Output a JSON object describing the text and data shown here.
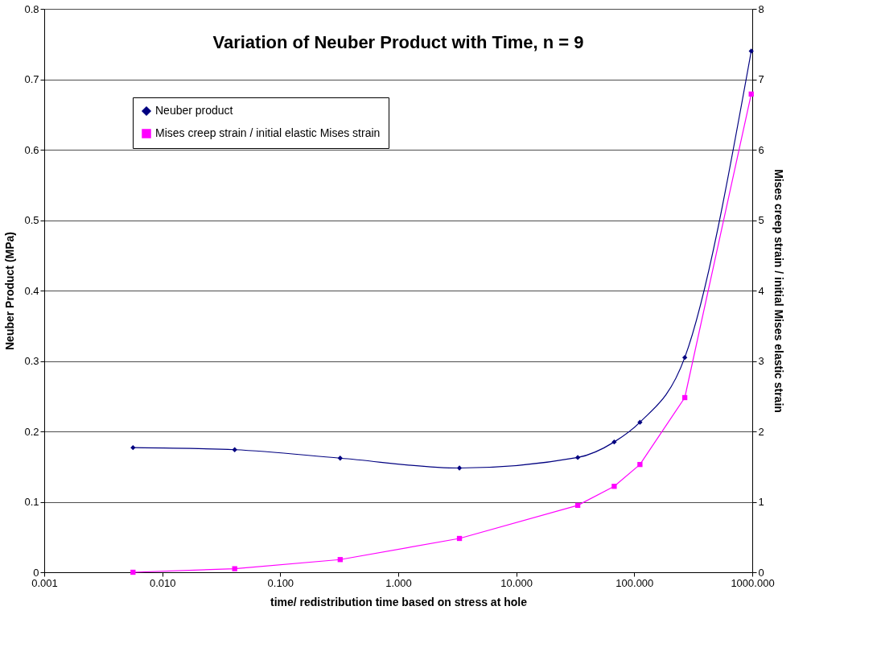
{
  "chart_data": {
    "type": "line",
    "title": "Variation of Neuber Product with Time, n = 9",
    "xlabel": "time/ redistribution time based on stress at hole",
    "ylabel": "Neuber Product (MPa)",
    "y2label": "Mises creep strain / initial Mises  elastic strain",
    "x": [
      0.00565,
      0.0411,
      0.322,
      3.3,
      33.2,
      67.6,
      111.7,
      268,
      980
    ],
    "series": [
      {
        "name": "Neuber product",
        "color": "#000080",
        "marker": "diamond",
        "values": [
          0.177,
          0.174,
          0.162,
          0.148,
          0.163,
          0.185,
          0.213,
          0.305,
          0.74
        ]
      },
      {
        "name": "Mises creep strain / initial elastic Mises strain",
        "color": "#ff00ff",
        "marker": "square",
        "axis": "y2",
        "values": [
          0,
          0.05,
          0.18,
          0.48,
          0.95,
          1.22,
          1.53,
          2.48,
          6.79
        ]
      }
    ],
    "log": "x",
    "xlim": [
      0.001,
      1000
    ],
    "xticks": [
      {
        "value": 0.001,
        "label": "0.001"
      },
      {
        "value": 0.01,
        "label": "0.010"
      },
      {
        "value": 0.1,
        "label": "0.100"
      },
      {
        "value": 1,
        "label": "1.000"
      },
      {
        "value": 10,
        "label": "10.000"
      },
      {
        "value": 100,
        "label": "100.000"
      },
      {
        "value": 1000,
        "label": "1000.000"
      }
    ],
    "ylim": [
      0,
      0.8
    ],
    "yticks": [
      0,
      0.1,
      0.2,
      0.3,
      0.4,
      0.5,
      0.6,
      0.7,
      0.8
    ],
    "y2lim": [
      0,
      8
    ],
    "y2ticks": [
      0,
      1,
      2,
      3,
      4,
      5,
      6,
      7,
      8
    ],
    "grid": "y",
    "legend": "top left",
    "line_style": "solid"
  }
}
